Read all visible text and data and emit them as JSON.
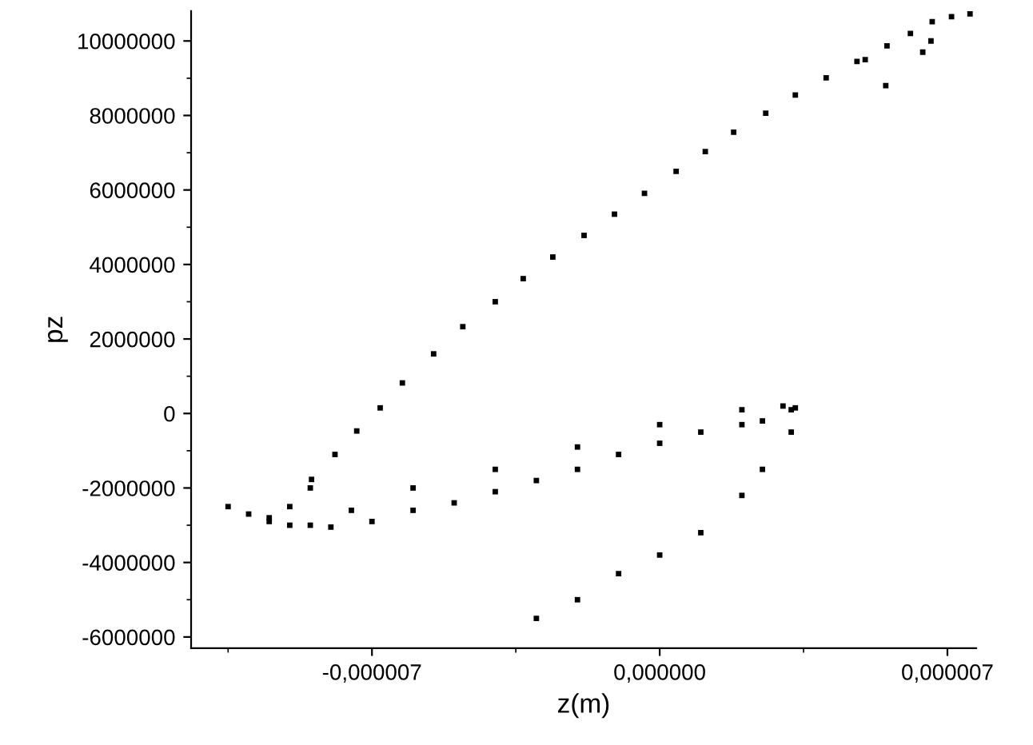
{
  "chart_data": {
    "type": "scatter",
    "xlabel": "z(m)",
    "ylabel": "pz",
    "marker": "square",
    "grid": false,
    "legend": false,
    "xlim": [
      -1.14e-05,
      7.7e-06
    ],
    "ylim": [
      -6300000,
      10800000
    ],
    "xticks": [
      {
        "value": -7e-06,
        "label": "-0,000007"
      },
      {
        "value": 0,
        "label": "0,000000"
      },
      {
        "value": 7e-06,
        "label": "0,000007"
      }
    ],
    "yticks": [
      -6000000,
      -4000000,
      -2000000,
      0,
      2000000,
      4000000,
      6000000,
      8000000,
      10000000
    ],
    "series": [
      {
        "color": "#000000",
        "x": [
          -1.05e-05,
          -1e-05,
          -9.5e-06,
          -9e-06,
          -8.5e-06,
          -8.47e-06,
          -7.9e-06,
          -7.37e-06,
          -6.8e-06,
          -6.26e-06,
          -5.5e-06,
          -4.79e-06,
          -4e-06,
          -3.32e-06,
          -2.6e-06,
          -1.84e-06,
          -1.1e-06,
          -3.7e-07,
          4e-07,
          1.11e-06,
          1.8e-06,
          2.58e-06,
          3.3e-06,
          4.05e-06,
          4.8e-06,
          5.53e-06,
          6.1e-06,
          6.63e-06,
          7.1e-06,
          7.55e-06,
          5e-06,
          5.5e-06,
          6.4e-06,
          6.6e-06,
          -9e-06,
          -8e-06,
          -7e-06,
          -6e-06,
          -5e-06,
          -4e-06,
          -3e-06,
          -2e-06,
          -1e-06,
          0.0,
          1e-06,
          2e-06,
          2.5e-06,
          3.2e-06,
          -7.5e-06,
          -6e-06,
          -4e-06,
          -2e-06,
          0.0,
          2e-06,
          3e-06,
          3.3e-06,
          3.2e-06,
          2.5e-06,
          2e-06,
          1e-06,
          0.0,
          -1e-06,
          -2e-06,
          -3e-06,
          -8.5e-06,
          -9.5e-06
        ],
        "values": [
          -2500000,
          -2700000,
          -2800000,
          -2500000,
          -2000000,
          -1770000,
          -1100000,
          -470000,
          150000,
          820000,
          1600000,
          2330000,
          3000000,
          3620000,
          4200000,
          4780000,
          5350000,
          5910000,
          6500000,
          7030000,
          7550000,
          8060000,
          8550000,
          9010000,
          9450000,
          9870000,
          10200000,
          10520000,
          10650000,
          10730000,
          9500000,
          8800000,
          9700000,
          10000000,
          -3000000,
          -3050000,
          -2900000,
          -2600000,
          -2400000,
          -2100000,
          -1800000,
          -1500000,
          -1100000,
          -800000,
          -500000,
          -300000,
          -200000,
          100000,
          -2600000,
          -2000000,
          -1500000,
          -900000,
          -300000,
          100000,
          200000,
          150000,
          -500000,
          -1500000,
          -2200000,
          -3200000,
          -3800000,
          -4300000,
          -5000000,
          -5500000,
          -3000000,
          -2900000
        ]
      }
    ]
  }
}
